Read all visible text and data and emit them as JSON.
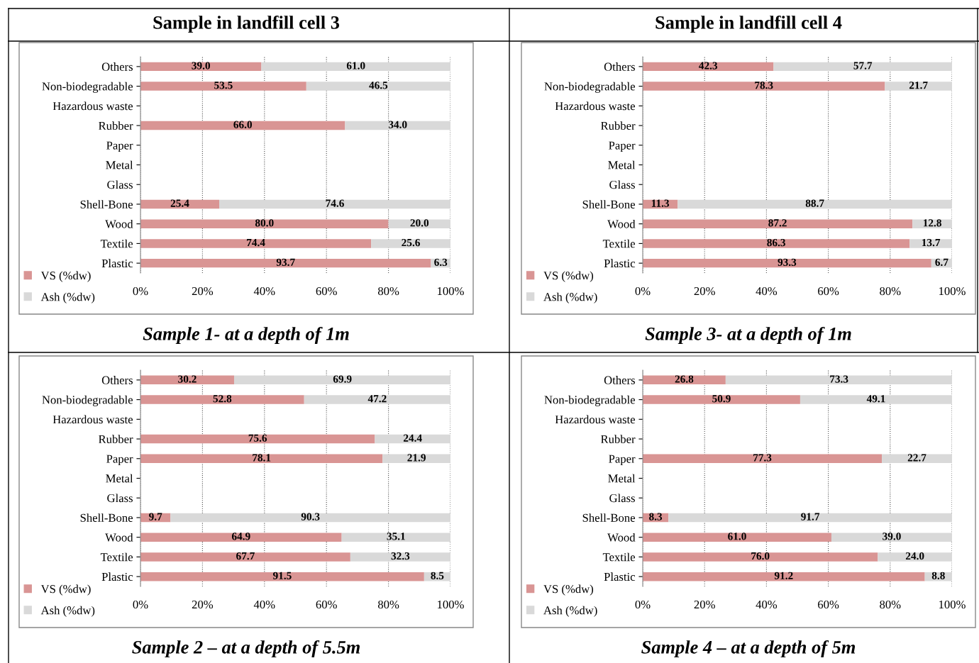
{
  "chart_data": [
    {
      "type": "bar",
      "orientation": "horizontal",
      "stacked": true,
      "title": "Sample in landfill cell 3",
      "subtitle": "Sample 1- at a depth of 1m",
      "categories": [
        "Others",
        "Non-biodegradable",
        "Hazardous waste",
        "Rubber",
        "Paper",
        "Metal",
        "Glass",
        "Shell-Bone",
        "Wood",
        "Textile",
        "Plastic"
      ],
      "series": [
        {
          "name": "VS (%dw)",
          "color": "#d99594",
          "values": [
            39.0,
            53.5,
            null,
            66.0,
            null,
            null,
            null,
            25.4,
            80.0,
            74.4,
            93.7
          ],
          "value_labels": [
            "39.0",
            "53.5",
            null,
            "66.0",
            null,
            null,
            null,
            "25.4",
            "80.0",
            "74.4",
            "93.7"
          ]
        },
        {
          "name": "Ash (%dw)",
          "color": "#d9d9d9",
          "values": [
            61.0,
            46.5,
            null,
            34.0,
            null,
            null,
            null,
            74.6,
            20.0,
            25.6,
            6.3
          ],
          "value_labels": [
            "61.0",
            "46.5",
            null,
            "34.0",
            null,
            null,
            null,
            "74.6",
            "20.0",
            "25.6",
            "6.3"
          ]
        }
      ],
      "xlim": [
        0,
        100
      ],
      "xticks": [
        {
          "value": 0,
          "label": "0%"
        },
        {
          "value": 20,
          "label": "20%"
        },
        {
          "value": 40,
          "label": "40%"
        },
        {
          "value": 60,
          "label": "60%"
        },
        {
          "value": 80,
          "label": "80%"
        },
        {
          "value": 100,
          "label": "100%"
        }
      ],
      "grid": "x",
      "legend": "bottom left"
    },
    {
      "type": "bar",
      "orientation": "horizontal",
      "stacked": true,
      "title": "Sample in landfill cell 4",
      "subtitle": "Sample 3- at a depth of 1m",
      "categories": [
        "Others",
        "Non-biodegradable",
        "Hazardous waste",
        "Rubber",
        "Paper",
        "Metal",
        "Glass",
        "Shell-Bone",
        "Wood",
        "Textile",
        "Plastic"
      ],
      "series": [
        {
          "name": "VS (%dw)",
          "color": "#d99594",
          "values": [
            42.3,
            78.3,
            null,
            null,
            null,
            null,
            null,
            11.3,
            87.2,
            86.3,
            93.3
          ],
          "value_labels": [
            "42.3",
            "78.3",
            null,
            null,
            null,
            null,
            null,
            "11.3",
            "87.2",
            "86.3",
            "93.3"
          ]
        },
        {
          "name": "Ash (%dw)",
          "color": "#d9d9d9",
          "values": [
            57.7,
            21.7,
            null,
            null,
            null,
            null,
            null,
            88.7,
            12.8,
            13.7,
            6.7
          ],
          "value_labels": [
            "57.7",
            "21.7",
            null,
            null,
            null,
            null,
            null,
            "88.7",
            "12.8",
            "13.7",
            "6.7"
          ]
        }
      ],
      "xlim": [
        0,
        100
      ],
      "xticks": [
        {
          "value": 0,
          "label": "0%"
        },
        {
          "value": 20,
          "label": "20%"
        },
        {
          "value": 40,
          "label": "40%"
        },
        {
          "value": 60,
          "label": "60%"
        },
        {
          "value": 80,
          "label": "80%"
        },
        {
          "value": 100,
          "label": "100%"
        }
      ],
      "grid": "x",
      "legend": "bottom left"
    },
    {
      "type": "bar",
      "orientation": "horizontal",
      "stacked": true,
      "subtitle": "Sample 2 – at a depth of 5.5m",
      "categories": [
        "Others",
        "Non-biodegradable",
        "Hazardous waste",
        "Rubber",
        "Paper",
        "Metal",
        "Glass",
        "Shell-Bone",
        "Wood",
        "Textile",
        "Plastic"
      ],
      "series": [
        {
          "name": "VS (%dw)",
          "color": "#d99594",
          "values": [
            30.2,
            52.8,
            null,
            75.6,
            78.1,
            null,
            null,
            9.7,
            64.9,
            67.7,
            91.5
          ],
          "value_labels": [
            "30.2",
            "52.8",
            null,
            "75.6",
            "78.1",
            null,
            null,
            "9.7",
            "64.9",
            "67.7",
            "91.5"
          ]
        },
        {
          "name": "Ash (%dw)",
          "color": "#d9d9d9",
          "values": [
            69.9,
            47.2,
            null,
            24.4,
            21.9,
            null,
            null,
            90.3,
            35.1,
            32.3,
            8.5
          ],
          "value_labels": [
            "69.9",
            "47.2",
            null,
            "24.4",
            "21.9",
            null,
            null,
            "90.3",
            "35.1",
            "32.3",
            "8.5"
          ]
        }
      ],
      "xlim": [
        0,
        100
      ],
      "xticks": [
        {
          "value": 0,
          "label": "0%"
        },
        {
          "value": 20,
          "label": "20%"
        },
        {
          "value": 40,
          "label": "40%"
        },
        {
          "value": 60,
          "label": "60%"
        },
        {
          "value": 80,
          "label": "80%"
        },
        {
          "value": 100,
          "label": "100%"
        }
      ],
      "grid": "x",
      "legend": "bottom left"
    },
    {
      "type": "bar",
      "orientation": "horizontal",
      "stacked": true,
      "subtitle": "Sample 4 – at a depth of 5m",
      "categories": [
        "Others",
        "Non-biodegradable",
        "Hazardous waste",
        "Rubber",
        "Paper",
        "Metal",
        "Glass",
        "Shell-Bone",
        "Wood",
        "Textile",
        "Plastic"
      ],
      "series": [
        {
          "name": "VS (%dw)",
          "color": "#d99594",
          "values": [
            26.8,
            50.9,
            null,
            null,
            77.3,
            null,
            null,
            8.3,
            61.0,
            76.0,
            91.2
          ],
          "value_labels": [
            "26.8",
            "50.9",
            null,
            null,
            "77.3",
            null,
            null,
            "8.3",
            "61.0",
            "76.0",
            "91.2"
          ]
        },
        {
          "name": "Ash (%dw)",
          "color": "#d9d9d9",
          "values": [
            73.3,
            49.1,
            null,
            null,
            22.7,
            null,
            null,
            91.7,
            39.0,
            24.0,
            8.8
          ],
          "value_labels": [
            "73.3",
            "49.1",
            null,
            null,
            "22.7",
            null,
            null,
            "91.7",
            "39.0",
            "24.0",
            "8.8"
          ]
        }
      ],
      "xlim": [
        0,
        100
      ],
      "xticks": [
        {
          "value": 0,
          "label": "0%"
        },
        {
          "value": 20,
          "label": "20%"
        },
        {
          "value": 40,
          "label": "40%"
        },
        {
          "value": 60,
          "label": "60%"
        },
        {
          "value": 80,
          "label": "80%"
        },
        {
          "value": 100,
          "label": "100%"
        }
      ],
      "grid": "x",
      "legend": "bottom left"
    }
  ]
}
